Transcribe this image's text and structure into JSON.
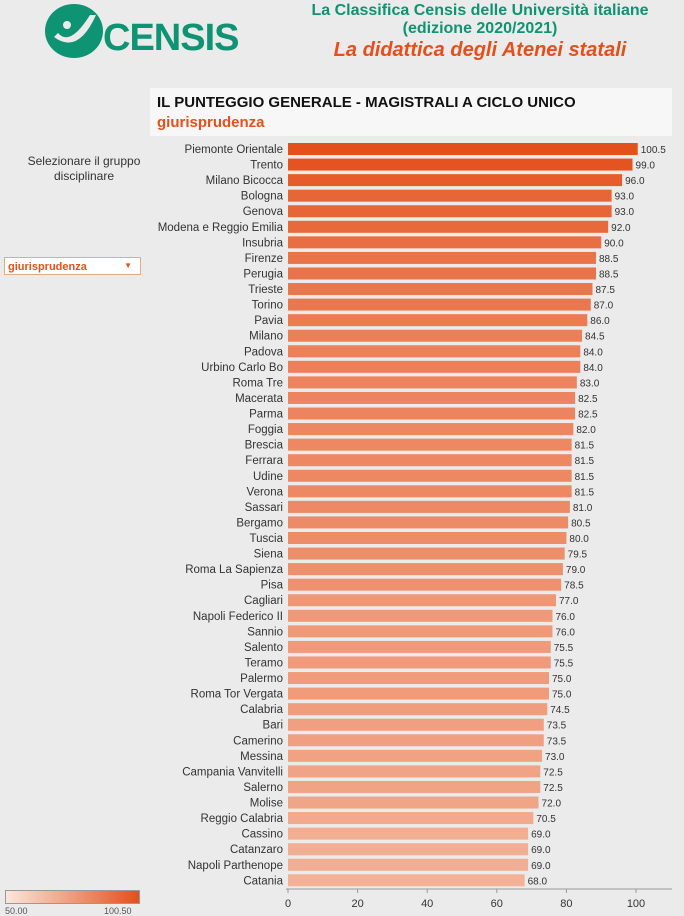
{
  "header": {
    "logo_text": "CENSIS",
    "line1": "La Classifica Censis delle Università italiane",
    "line2": "(edizione 2020/2021)",
    "subtitle": "La didattica degli Atenei statali"
  },
  "title": {
    "main": "IL PUNTEGGIO GENERALE - MAGISTRALI A CICLO UNICO",
    "selection": "giurisprudenza"
  },
  "filter": {
    "label": "Selezionare il gruppo disciplinare",
    "value": "giurisprudenza"
  },
  "legend": {
    "min_label": "50.00",
    "max_label": "100.50",
    "color_min": "#fbe6db",
    "color_max": "#e4501a"
  },
  "chart_data": {
    "type": "bar",
    "orientation": "horizontal",
    "categories": [
      "Piemonte Orientale",
      "Trento",
      "Milano Bicocca",
      "Bologna",
      "Genova",
      "Modena e Reggio Emilia",
      "Insubria",
      "Firenze",
      "Perugia",
      "Trieste",
      "Torino",
      "Pavia",
      "Milano",
      "Padova",
      "Urbino Carlo Bo",
      "Roma Tre",
      "Macerata",
      "Parma",
      "Foggia",
      "Brescia",
      "Ferrara",
      "Udine",
      "Verona",
      "Sassari",
      "Bergamo",
      "Tuscia",
      "Siena",
      "Roma La Sapienza",
      "Pisa",
      "Cagliari",
      "Napoli Federico II",
      "Sannio",
      "Salento",
      "Teramo",
      "Palermo",
      "Roma Tor Vergata",
      "Calabria",
      "Bari",
      "Camerino",
      "Messina",
      "Campania Vanvitelli",
      "Salerno",
      "Molise",
      "Reggio Calabria",
      "Cassino",
      "Catanzaro",
      "Napoli Parthenope",
      "Catania"
    ],
    "values": [
      100.5,
      99.0,
      96.0,
      93.0,
      93.0,
      92.0,
      90.0,
      88.5,
      88.5,
      87.5,
      87.0,
      86.0,
      84.5,
      84.0,
      84.0,
      83.0,
      82.5,
      82.5,
      82.0,
      81.5,
      81.5,
      81.5,
      81.5,
      81.0,
      80.5,
      80.0,
      79.5,
      79.0,
      78.5,
      77.0,
      76.0,
      76.0,
      75.5,
      75.5,
      75.0,
      75.0,
      74.5,
      73.5,
      73.5,
      73.0,
      72.5,
      72.5,
      72.0,
      70.5,
      69.0,
      69.0,
      69.0,
      68.0
    ],
    "value_labels": [
      "100.5",
      "99.0",
      "96.0",
      "93.0",
      "93.0",
      "92.0",
      "90.0",
      "88.5",
      "88.5",
      "87.5",
      "87.0",
      "86.0",
      "84.5",
      "84.0",
      "84.0",
      "83.0",
      "82.5",
      "82.5",
      "82.0",
      "81.5",
      "81.5",
      "81.5",
      "81.5",
      "81.0",
      "80.5",
      "80.0",
      "79.5",
      "79.0",
      "78.5",
      "77.0",
      "76.0",
      "76.0",
      "75.5",
      "75.5",
      "75.0",
      "75.0",
      "74.5",
      "73.5",
      "73.5",
      "73.0",
      "72.5",
      "72.5",
      "72.0",
      "70.5",
      "69.0",
      "69.0",
      "69.0",
      "68.0"
    ],
    "x_ticks": [
      "0",
      "20",
      "40",
      "60",
      "80",
      "100"
    ],
    "xlim": [
      0,
      110
    ],
    "color_range": [
      50.0,
      100.5
    ],
    "grid": false,
    "legend": "bottom-left"
  }
}
